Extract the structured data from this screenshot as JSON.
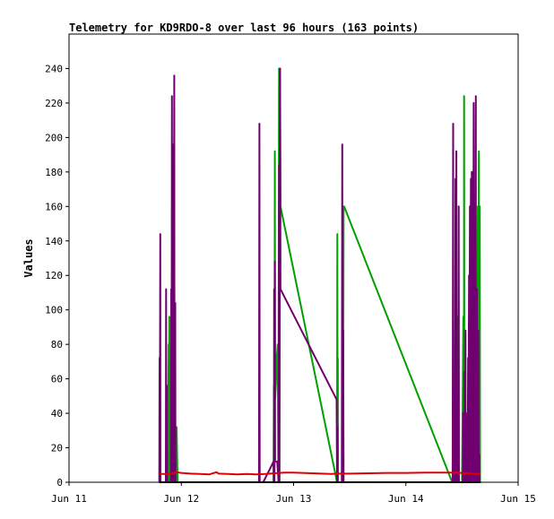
{
  "chart_data": {
    "type": "line",
    "title": "Telemetry for KD9RDO-8 over last 96 hours (163 points)",
    "xlabel": "",
    "ylabel": "Values",
    "x_range": [
      "2023-06-11T00:00",
      "2023-06-15T00:00"
    ],
    "x_ticks": [
      {
        "label": "Jun 11",
        "t": 0
      },
      {
        "label": "Jun 12",
        "t": 24
      },
      {
        "label": "Jun 13",
        "t": 48
      },
      {
        "label": "Jun 14",
        "t": 72
      },
      {
        "label": "Jun 15",
        "t": 96
      }
    ],
    "x_units": "hours since Jun 11 00:00",
    "ylim": [
      0,
      260
    ],
    "y_ticks": [
      0,
      20,
      40,
      60,
      80,
      100,
      120,
      140,
      160,
      180,
      200,
      220,
      240
    ],
    "grid": false,
    "series": [
      {
        "name": "",
        "color": "#00a000",
        "points": [
          [
            19.6,
            0
          ],
          [
            19.7,
            0
          ],
          [
            19.9,
            0
          ],
          [
            20.1,
            0
          ],
          [
            20.3,
            0
          ],
          [
            20.5,
            0
          ],
          [
            20.7,
            0
          ],
          [
            20.8,
            0
          ],
          [
            20.8,
            4
          ],
          [
            20.85,
            0
          ],
          [
            21.0,
            0
          ],
          [
            21.1,
            56
          ],
          [
            21.15,
            0
          ],
          [
            21.3,
            80
          ],
          [
            21.35,
            0
          ],
          [
            21.45,
            96
          ],
          [
            21.5,
            0
          ],
          [
            21.7,
            0
          ],
          [
            22.0,
            0
          ],
          [
            22.4,
            0
          ],
          [
            22.9,
            0
          ],
          [
            23.0,
            32
          ],
          [
            23.2,
            0
          ],
          [
            23.3,
            0
          ],
          [
            23.7,
            0
          ],
          [
            42.0,
            0
          ],
          [
            42.4,
            0
          ],
          [
            43.0,
            0
          ],
          [
            43.5,
            0
          ],
          [
            43.7,
            0
          ],
          [
            43.8,
            56
          ],
          [
            43.9,
            0
          ],
          [
            44.0,
            192
          ],
          [
            44.05,
            48
          ],
          [
            44.2,
            56
          ],
          [
            44.4,
            72
          ],
          [
            44.6,
            80
          ],
          [
            44.75,
            0
          ],
          [
            44.9,
            240
          ],
          [
            45.0,
            0
          ],
          [
            45.1,
            240
          ],
          [
            45.2,
            160
          ],
          [
            57.3,
            0
          ],
          [
            57.35,
            144
          ],
          [
            57.4,
            0
          ],
          [
            57.45,
            72
          ],
          [
            57.5,
            0
          ],
          [
            58.6,
            0
          ],
          [
            58.7,
            160
          ],
          [
            58.8,
            160
          ],
          [
            81.9,
            0
          ],
          [
            82.3,
            0
          ],
          [
            82.5,
            0
          ],
          [
            82.55,
            88
          ],
          [
            82.6,
            0
          ],
          [
            82.8,
            0
          ],
          [
            82.9,
            96
          ],
          [
            82.95,
            0
          ],
          [
            83.2,
            0
          ],
          [
            83.3,
            0
          ],
          [
            83.8,
            0
          ],
          [
            84.0,
            0
          ],
          [
            84.3,
            96
          ],
          [
            84.35,
            0
          ],
          [
            84.4,
            0
          ],
          [
            84.45,
            224
          ],
          [
            84.5,
            32
          ],
          [
            84.6,
            0
          ],
          [
            84.8,
            0
          ],
          [
            85.0,
            0
          ],
          [
            85.4,
            0
          ],
          [
            85.6,
            0
          ],
          [
            85.8,
            0
          ],
          [
            86.2,
            0
          ],
          [
            86.4,
            0
          ],
          [
            86.6,
            0
          ],
          [
            86.8,
            0
          ],
          [
            87.0,
            0
          ],
          [
            87.2,
            0
          ],
          [
            87.4,
            160
          ],
          [
            87.45,
            0
          ],
          [
            87.6,
            192
          ],
          [
            87.65,
            0
          ],
          [
            87.8,
            160
          ],
          [
            87.85,
            0
          ]
        ]
      },
      {
        "name": "",
        "color": "#700070",
        "points": [
          [
            19.3,
            0
          ],
          [
            19.35,
            72
          ],
          [
            19.4,
            0
          ],
          [
            19.5,
            144
          ],
          [
            19.55,
            0
          ],
          [
            20.7,
            0
          ],
          [
            20.75,
            112
          ],
          [
            20.8,
            0
          ],
          [
            20.9,
            56
          ],
          [
            20.95,
            0
          ],
          [
            21.05,
            0
          ],
          [
            21.5,
            0
          ],
          [
            21.8,
            0
          ],
          [
            21.85,
            112
          ],
          [
            21.9,
            0
          ],
          [
            22.0,
            224
          ],
          [
            22.05,
            0
          ],
          [
            22.15,
            196
          ],
          [
            22.2,
            0
          ],
          [
            22.3,
            140
          ],
          [
            22.35,
            0
          ],
          [
            22.5,
            236
          ],
          [
            22.55,
            0
          ],
          [
            22.7,
            104
          ],
          [
            22.75,
            0
          ],
          [
            40.6,
            0
          ],
          [
            40.7,
            208
          ],
          [
            40.75,
            0
          ],
          [
            41.5,
            0
          ],
          [
            43.0,
            8
          ],
          [
            43.7,
            12
          ],
          [
            43.8,
            0
          ],
          [
            43.85,
            112
          ],
          [
            43.9,
            0
          ],
          [
            44.0,
            128
          ],
          [
            44.05,
            12
          ],
          [
            44.5,
            12
          ],
          [
            44.8,
            0
          ],
          [
            44.9,
            184
          ],
          [
            44.95,
            0
          ],
          [
            45.1,
            240
          ],
          [
            45.2,
            112
          ],
          [
            57.2,
            48
          ],
          [
            57.3,
            0
          ],
          [
            57.35,
            32
          ],
          [
            57.4,
            0
          ],
          [
            58.3,
            0
          ],
          [
            58.4,
            196
          ],
          [
            58.45,
            0
          ],
          [
            58.6,
            88
          ],
          [
            58.7,
            0
          ],
          [
            82.0,
            0
          ],
          [
            82.1,
            208
          ],
          [
            82.15,
            0
          ],
          [
            82.5,
            0
          ],
          [
            82.6,
            176
          ],
          [
            82.65,
            0
          ],
          [
            82.8,
            192
          ],
          [
            82.85,
            0
          ],
          [
            83.2,
            0
          ],
          [
            83.3,
            160
          ],
          [
            83.35,
            0
          ],
          [
            83.5,
            0
          ],
          [
            84.2,
            0
          ],
          [
            84.3,
            40
          ],
          [
            84.35,
            0
          ],
          [
            84.5,
            0
          ],
          [
            84.55,
            64
          ],
          [
            84.6,
            0
          ],
          [
            84.7,
            0
          ],
          [
            84.75,
            88
          ],
          [
            84.8,
            0
          ],
          [
            84.9,
            40
          ],
          [
            84.95,
            0
          ],
          [
            85.2,
            0
          ],
          [
            85.3,
            72
          ],
          [
            85.35,
            0
          ],
          [
            85.5,
            120
          ],
          [
            85.55,
            0
          ],
          [
            85.7,
            160
          ],
          [
            85.75,
            0
          ],
          [
            85.9,
            176
          ],
          [
            85.95,
            0
          ],
          [
            86.1,
            180
          ],
          [
            86.15,
            0
          ],
          [
            86.3,
            176
          ],
          [
            86.35,
            0
          ],
          [
            86.5,
            220
          ],
          [
            86.55,
            0
          ],
          [
            86.7,
            40
          ],
          [
            86.75,
            0
          ],
          [
            86.95,
            224
          ],
          [
            87.0,
            0
          ],
          [
            87.2,
            112
          ],
          [
            87.25,
            0
          ],
          [
            87.5,
            88
          ],
          [
            87.55,
            0
          ],
          [
            87.7,
            16
          ],
          [
            87.75,
            0
          ]
        ]
      },
      {
        "name": "",
        "color": "#e00000",
        "points": [
          [
            19.3,
            4.8
          ],
          [
            21.0,
            4.8
          ],
          [
            22.0,
            5.2
          ],
          [
            23.0,
            5.8
          ],
          [
            24.0,
            5.4
          ],
          [
            26.0,
            5.0
          ],
          [
            28.0,
            4.8
          ],
          [
            30.0,
            4.6
          ],
          [
            31.5,
            5.8
          ],
          [
            32.0,
            5.0
          ],
          [
            34.0,
            4.8
          ],
          [
            36.0,
            4.6
          ],
          [
            38.0,
            4.8
          ],
          [
            40.0,
            4.6
          ],
          [
            42.0,
            4.8
          ],
          [
            44.0,
            5.2
          ],
          [
            46.0,
            5.6
          ],
          [
            48.0,
            5.6
          ],
          [
            50.0,
            5.4
          ],
          [
            52.0,
            5.2
          ],
          [
            54.0,
            5.0
          ],
          [
            56.0,
            4.8
          ],
          [
            58.0,
            5.0
          ],
          [
            60.0,
            5.0
          ],
          [
            64.0,
            5.2
          ],
          [
            68.0,
            5.4
          ],
          [
            72.0,
            5.4
          ],
          [
            76.0,
            5.6
          ],
          [
            80.0,
            5.6
          ],
          [
            82.0,
            5.6
          ],
          [
            84.0,
            5.4
          ],
          [
            86.0,
            5.0
          ],
          [
            88.0,
            4.8
          ]
        ]
      },
      {
        "name": "",
        "color": "#000000",
        "points": [
          [
            19.3,
            0
          ],
          [
            88.0,
            0
          ]
        ]
      }
    ]
  }
}
